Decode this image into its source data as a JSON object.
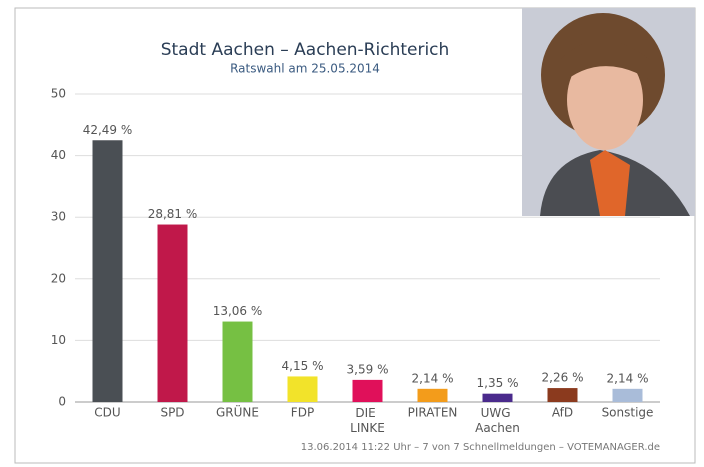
{
  "chart_data": {
    "type": "bar",
    "title": "Stadt Aachen – Aachen-Richterich",
    "subtitle": "Ratswahl am 25.05.2014",
    "footer": "13.06.2014 11:22 Uhr – 7 von 7 Schnellmeldungen – VOTEMANAGER.de",
    "categories": [
      "CDU",
      "SPD",
      "GRÜNE",
      "FDP",
      "DIE LINKE",
      "PIRATEN",
      "UWG Aachen",
      "AfD",
      "Sonstige"
    ],
    "values": [
      42.49,
      28.81,
      13.06,
      4.15,
      3.59,
      2.14,
      1.35,
      2.26,
      2.14
    ],
    "value_labels": [
      "42,49 %",
      "28,81 %",
      "13,06 %",
      "4,15 %",
      "3,59 %",
      "2,14 %",
      "1,35 %",
      "2,26 %",
      "2,14 %"
    ],
    "colors": [
      "#4a4f54",
      "#c0184a",
      "#76c043",
      "#f2e32a",
      "#e0105a",
      "#f39c1b",
      "#4a2a8c",
      "#8b3a1e",
      "#a9bcd9"
    ],
    "ylim": [
      0,
      50
    ],
    "yticks": [
      0,
      10,
      20,
      30,
      40,
      50
    ],
    "grid": true
  }
}
